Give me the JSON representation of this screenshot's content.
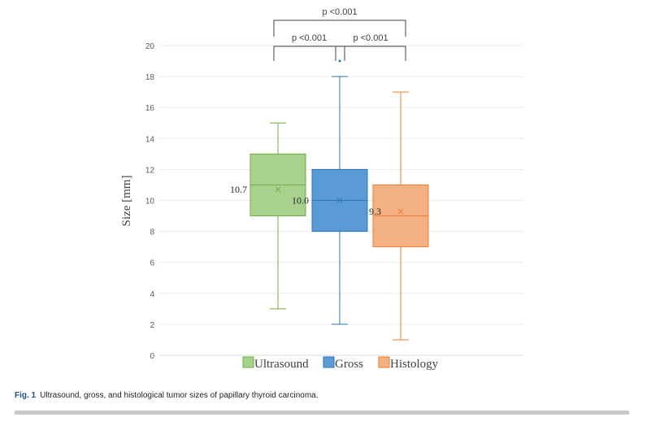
{
  "chart_data": {
    "type": "box",
    "ylabel": "Size [mm]",
    "ylim": [
      0,
      20
    ],
    "yticks": [
      0,
      2,
      4,
      6,
      8,
      10,
      12,
      14,
      16,
      18,
      20
    ],
    "grid": true,
    "legend_position": "bottom",
    "series": [
      {
        "name": "Ultrasound",
        "min": 3,
        "q1": 9,
        "median": 11,
        "q3": 13,
        "max": 15,
        "mean": 10.7,
        "mean_label": "10.7",
        "color": "#a9d18e",
        "stroke": "#70ad47"
      },
      {
        "name": "Gross",
        "min": 2,
        "q1": 8,
        "median": 10,
        "q3": 12,
        "max": 18,
        "mean": 10.0,
        "mean_label": "10.0",
        "outliers": [
          19
        ],
        "color": "#5b9bd5",
        "stroke": "#2e75b6"
      },
      {
        "name": "Histology",
        "min": 1,
        "q1": 7,
        "median": 9,
        "q3": 11,
        "max": 17,
        "mean": 9.3,
        "mean_label": "9.3",
        "color": "#f4b183",
        "stroke": "#ed7d31"
      }
    ],
    "comparisons": [
      {
        "from": 0,
        "to": 2,
        "label": "p <0.001",
        "level": 2
      },
      {
        "from": 0,
        "to": 1,
        "label": "p <0.001",
        "level": 1
      },
      {
        "from": 1,
        "to": 2,
        "label": "p <0.001",
        "level": 1
      }
    ]
  },
  "caption": {
    "figure_label": "Fig. 1",
    "text": "Ultrasound, gross, and histological tumor sizes of papillary thyroid carcinoma."
  }
}
